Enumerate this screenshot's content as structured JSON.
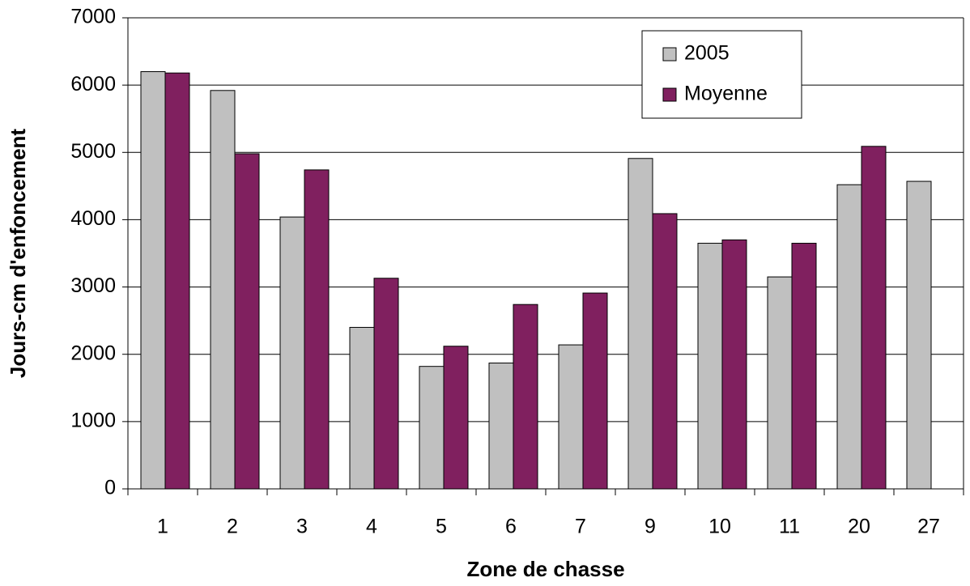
{
  "chart_data": {
    "type": "bar",
    "xlabel": "Zone de chasse",
    "ylabel": "Jours-cm d'enfoncement",
    "categories": [
      "1",
      "2",
      "3",
      "4",
      "5",
      "6",
      "7",
      "9",
      "10",
      "11",
      "20",
      "27"
    ],
    "series": [
      {
        "name": "2005",
        "color": "#c0c0c0",
        "values": [
          6200,
          5920,
          4040,
          2400,
          1820,
          1870,
          2140,
          4910,
          3650,
          3150,
          4520,
          4570
        ]
      },
      {
        "name": "Moyenne",
        "color": "#80205f",
        "values": [
          6180,
          4980,
          4740,
          3130,
          2120,
          2740,
          2910,
          4090,
          3700,
          3650,
          5090,
          null
        ]
      }
    ],
    "ylim": [
      0,
      7000
    ],
    "yticks": [
      0,
      1000,
      2000,
      3000,
      4000,
      5000,
      6000,
      7000
    ],
    "grid": true,
    "legend": "upper right"
  }
}
